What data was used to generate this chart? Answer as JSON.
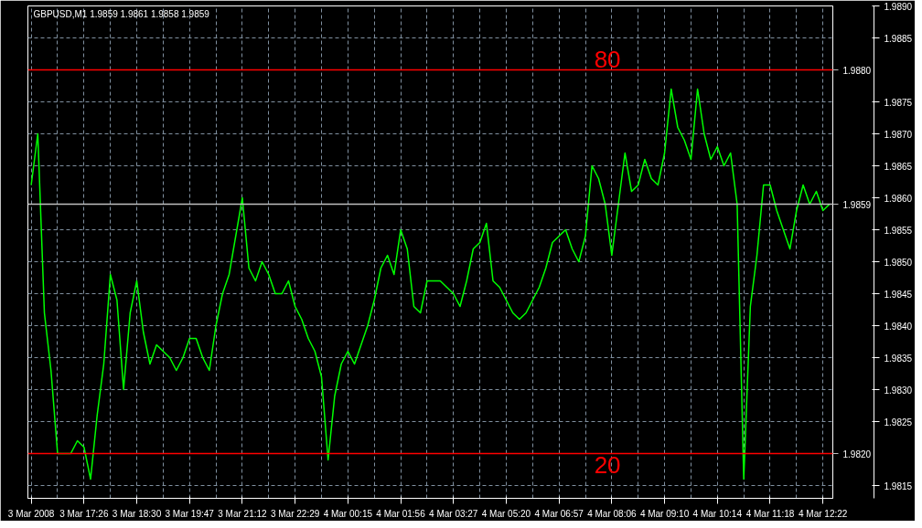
{
  "chart_data": {
    "type": "line",
    "title": "GBPUSD,M1  1.9859 1.9861 1.9858 1.9859",
    "categories": [
      "3 Mar 2008",
      null,
      null,
      null,
      null,
      null,
      null,
      null,
      "3 Mar 17:26",
      null,
      null,
      null,
      null,
      null,
      null,
      null,
      "3 Mar 18:30",
      null,
      null,
      null,
      null,
      null,
      null,
      null,
      "3 Mar 19:47",
      null,
      null,
      null,
      null,
      null,
      null,
      null,
      "3 Mar 21:12",
      null,
      null,
      null,
      null,
      null,
      null,
      null,
      "3 Mar 22:29",
      null,
      null,
      null,
      null,
      null,
      null,
      null,
      "4 Mar 00:15",
      null,
      null,
      null,
      null,
      null,
      null,
      null,
      "4 Mar 01:56",
      null,
      null,
      null,
      null,
      null,
      null,
      null,
      "4 Mar 03:27",
      null,
      null,
      null,
      null,
      null,
      null,
      null,
      "4 Mar 05:20",
      null,
      null,
      null,
      null,
      null,
      null,
      null,
      "4 Mar 06:57",
      null,
      null,
      null,
      null,
      null,
      null,
      null,
      "4 Mar 08:06",
      null,
      null,
      null,
      null,
      null,
      null,
      null,
      "4 Mar 09:10",
      null,
      null,
      null,
      null,
      null,
      null,
      null,
      "4 Mar 10:14",
      null,
      null,
      null,
      null,
      null,
      null,
      null,
      "4 Mar 11:18",
      null,
      null,
      null,
      null,
      null,
      null,
      null,
      "4 Mar 12:22",
      null
    ],
    "series": [
      {
        "color": "#00ff00",
        "values": [
          1.9862,
          1.987,
          1.9842,
          1.9833,
          1.982,
          1.982,
          1.982,
          1.9822,
          1.9821,
          1.9816,
          1.9826,
          1.9834,
          1.9848,
          1.9844,
          1.983,
          1.9842,
          1.9847,
          1.9839,
          1.9834,
          1.9837,
          1.9836,
          1.9835,
          1.9833,
          1.9835,
          1.9838,
          1.9838,
          1.9835,
          1.9833,
          1.984,
          1.9845,
          1.9848,
          1.9854,
          1.986,
          1.9849,
          1.9847,
          1.985,
          1.9848,
          1.9845,
          1.9845,
          1.9847,
          1.9843,
          1.9841,
          1.9838,
          1.9836,
          1.9832,
          1.9819,
          1.9829,
          1.9834,
          1.9836,
          1.9834,
          1.9837,
          1.984,
          1.9844,
          1.9849,
          1.9851,
          1.9848,
          1.9855,
          1.9852,
          1.9843,
          1.9842,
          1.9847,
          1.9847,
          1.9847,
          1.9846,
          1.9845,
          1.9843,
          1.9847,
          1.9852,
          1.9853,
          1.9856,
          1.9847,
          1.9846,
          1.9844,
          1.9842,
          1.9841,
          1.9842,
          1.9844,
          1.9846,
          1.9849,
          1.9853,
          1.9854,
          1.9855,
          1.9852,
          1.985,
          1.9854,
          1.9865,
          1.9863,
          1.9859,
          1.9851,
          1.9859,
          1.9867,
          1.9861,
          1.9862,
          1.9866,
          1.9863,
          1.9862,
          1.9867,
          1.9877,
          1.9871,
          1.9869,
          1.9866,
          1.9877,
          1.987,
          1.9866,
          1.9868,
          1.9865,
          1.9867,
          1.9859,
          1.9816,
          1.9843,
          1.9851,
          1.9862,
          1.9862,
          1.9858,
          1.9855,
          1.9852,
          1.9858,
          1.9862,
          1.9859,
          1.9861,
          1.9858,
          1.9859
        ]
      }
    ],
    "ylim": [
      1.9813,
      1.989
    ],
    "yticks": [
      {
        "value": 1.9815,
        "label": "1.9815"
      },
      {
        "value": 1.9825,
        "label": "1.9825"
      },
      {
        "value": 1.983,
        "label": "1.9830"
      },
      {
        "value": 1.9835,
        "label": "1.9835"
      },
      {
        "value": 1.984,
        "label": "1.9840"
      },
      {
        "value": 1.9845,
        "label": "1.9845"
      },
      {
        "value": 1.985,
        "label": "1.9850"
      },
      {
        "value": 1.9855,
        "label": "1.9855"
      },
      {
        "value": 1.986,
        "label": "1.9860"
      },
      {
        "value": 1.9865,
        "label": "1.9865"
      },
      {
        "value": 1.987,
        "label": "1.9870"
      },
      {
        "value": 1.9875,
        "label": "1.9875"
      },
      {
        "value": 1.9885,
        "label": "1.9885"
      },
      {
        "value": 1.989,
        "label": "1.9890"
      }
    ],
    "ref_lines": [
      {
        "axis": "y",
        "value": 1.988,
        "label": "1.9880",
        "color": "#ff0000"
      },
      {
        "axis": "y",
        "value": 1.982,
        "label": "1.9820",
        "color": "#ff0000"
      },
      {
        "axis": "y",
        "value": 1.9859,
        "label": "1.9859",
        "color": "#c0c0c0"
      }
    ],
    "annotations": [
      "80",
      "20"
    ],
    "grid": true,
    "marker": "none",
    "line_style": "solid"
  }
}
